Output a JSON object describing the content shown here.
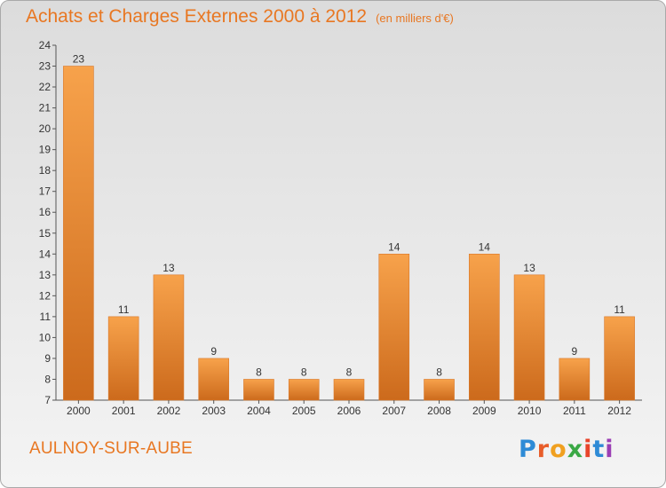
{
  "title": "Achats et Charges Externes 2000 à 2012",
  "unit_note": "(en milliers d'€)",
  "town": "AULNOY-SUR-AUBE",
  "logo": {
    "text": "Proxiti",
    "letter_colors": [
      "#2e8bd6",
      "#e85d2a",
      "#f0a020",
      "#3aa845",
      "#e8442a",
      "#2e8bd6",
      "#9b3fb5"
    ]
  },
  "colors": {
    "accent": "#e87722",
    "bar": "#f0902f",
    "bar_dark": "#c8651a"
  },
  "chart_data": {
    "type": "bar",
    "categories": [
      "2000",
      "2001",
      "2002",
      "2003",
      "2004",
      "2005",
      "2006",
      "2007",
      "2008",
      "2009",
      "2010",
      "2011",
      "2012"
    ],
    "values": [
      23,
      11,
      13,
      9,
      8,
      8,
      8,
      14,
      8,
      14,
      13,
      9,
      11
    ],
    "ylim": [
      7,
      24
    ],
    "yticks": [
      7,
      8,
      9,
      10,
      11,
      12,
      13,
      14,
      15,
      16,
      17,
      18,
      19,
      20,
      21,
      22,
      23,
      24
    ],
    "grid": false
  }
}
